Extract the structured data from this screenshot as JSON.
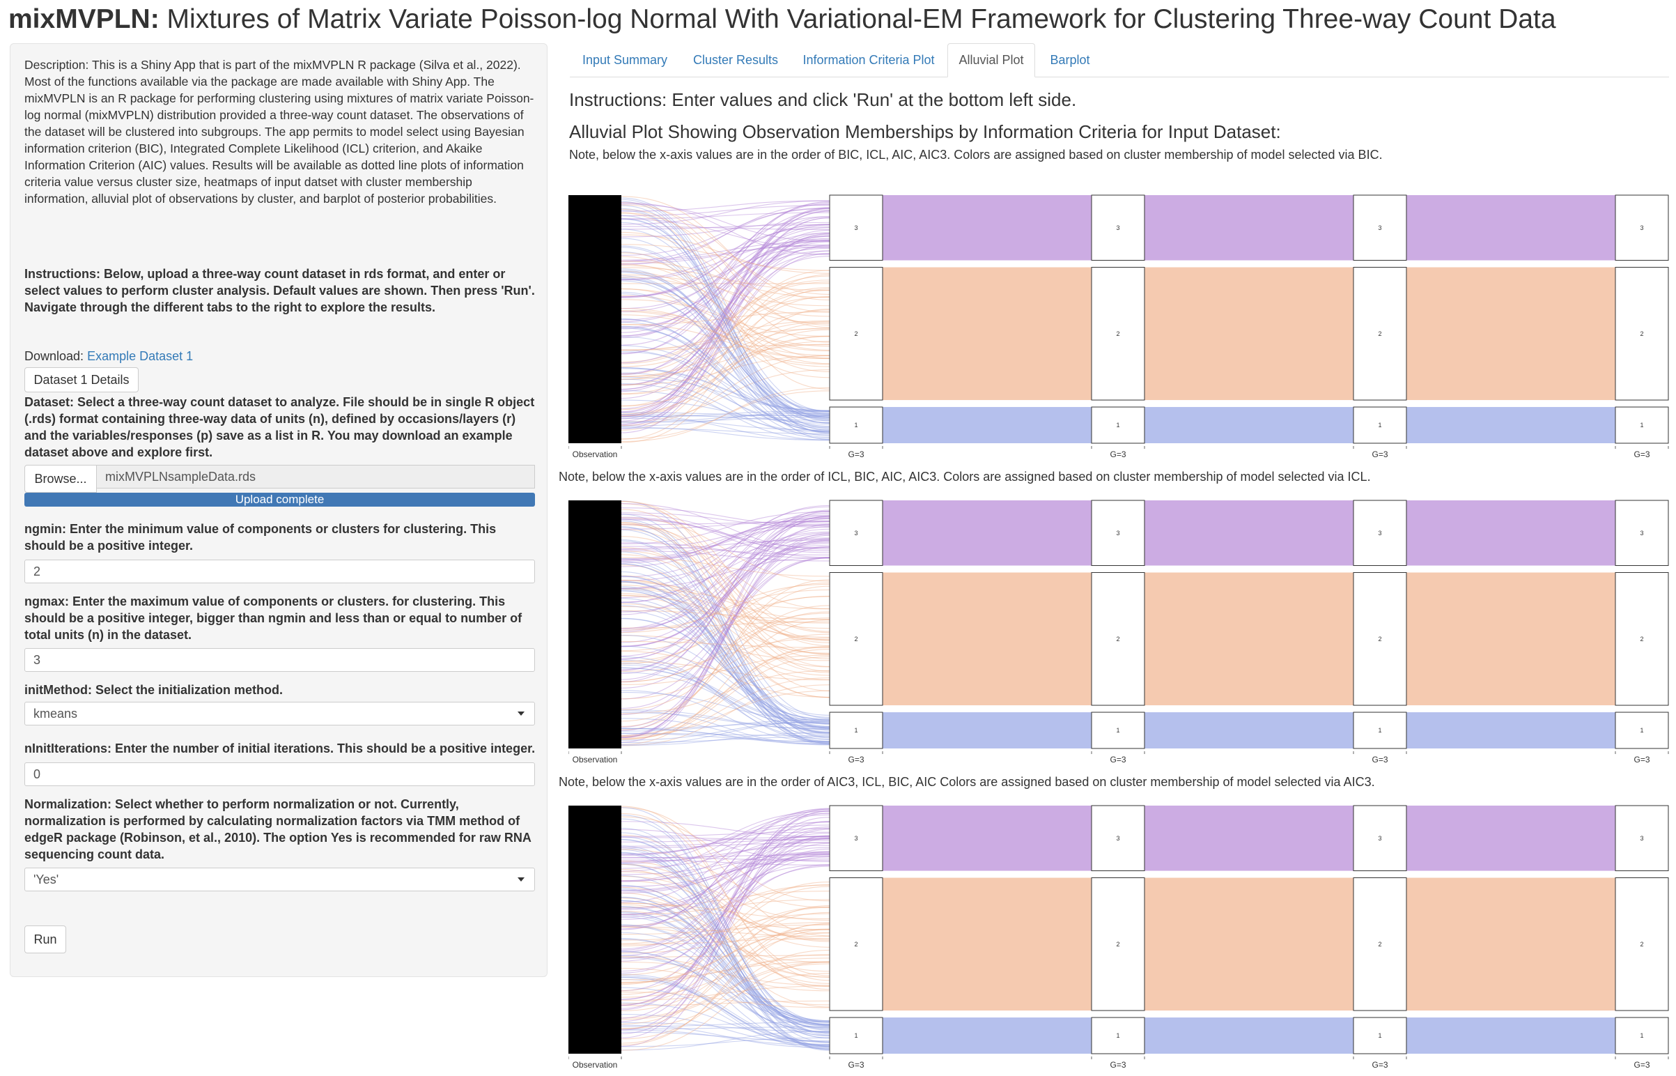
{
  "page_title": {
    "bold": "mixMVPLN:",
    "rest": " Mixtures of Matrix Variate Poisson-log Normal With Variational-EM Framework for Clustering Three-way Count Data"
  },
  "sidebar": {
    "description": "Description: This is a Shiny App that is part of the mixMVPLN R package (Silva et al., 2022). Most of the functions available via the package are made available with Shiny App. The mixMVPLN is an R package for performing clustering using mixtures of matrix variate Poisson-log normal (mixMVPLN) distribution provided a three-way count dataset. The observations of the dataset will be clustered into subgroups. The app permits to model select using Bayesian information criterion (BIC), Integrated Complete Likelihood (ICL) criterion, and Akaike Information Criterion (AIC) values. Results will be available as dotted line plots of information criteria value versus cluster size, heatmaps of input datset with cluster membership information, alluvial plot of observations by cluster, and barplot of posterior probabilities.",
    "instructions": "Instructions: Below, upload a three-way count dataset in rds format, and enter or select values to perform cluster analysis. Default values are shown. Then press 'Run'. Navigate through the different tabs to the right to explore the results.",
    "download_label": "Download: ",
    "download_link": "Example Dataset 1",
    "details_button": "Dataset 1 Details",
    "dataset_label": "Dataset: Select a three-way count dataset to analyze. File should be in single R object (.rds) format containing three-way data of units (n), defined by occasions/layers (r) and the variables/responses (p) save as a list in R. You may download an example dataset above and explore first.",
    "browse_button": "Browse...",
    "file_name": "mixMVPLNsampleData.rds",
    "upload_status": "Upload complete",
    "upload_progress": 1.0,
    "ngmin_label": "ngmin: Enter the minimum value of components or clusters for clustering. This should be a positive integer.",
    "ngmin_value": "2",
    "ngmax_label": "ngmax: Enter the maximum value of components or clusters. for clustering. This should be a positive integer, bigger than ngmin and less than or equal to number of total units (n) in the dataset.",
    "ngmax_value": "3",
    "init_label": "initMethod: Select the initialization method.",
    "init_value": "kmeans",
    "ninit_label": "nInitIterations: Enter the number of initial iterations. This should be a positive integer.",
    "ninit_value": "0",
    "norm_label": "Normalization: Select whether to perform normalization or not. Currently, normalization is performed by calculating normalization factors via TMM method of edgeR package (Robinson, et al., 2010). The option Yes is recommended for raw RNA sequencing count data.",
    "norm_value": "'Yes'",
    "run_button": "Run"
  },
  "tabs": [
    {
      "label": "Input Summary",
      "active": false
    },
    {
      "label": "Cluster Results",
      "active": false
    },
    {
      "label": "Information Criteria Plot",
      "active": false
    },
    {
      "label": "Alluvial Plot",
      "active": true
    },
    {
      "label": "Barplot",
      "active": false
    }
  ],
  "main": {
    "instructions": "Instructions: Enter values and click 'Run' at the bottom left side.",
    "plot_heading": "Alluvial Plot Showing Observation Memberships by Information Criteria for Input Dataset:",
    "notes": [
      "Note, below the x-axis values are in the order of BIC, ICL, AIC, AIC3. Colors are assigned based on cluster membership of model selected via BIC.",
      "Note, below the x-axis values are in the order of ICL, BIC, AIC, AIC3. Colors are assigned based on cluster membership of model selected via ICL.",
      "Note, below the x-axis values are in the order of AIC3, ICL, BIC, AIC Colors are assigned based on cluster membership of model selected via AIC3."
    ]
  },
  "chart_data": [
    {
      "type": "alluvial",
      "axes": [
        "Observation",
        "G=3",
        "G=3",
        "G=3",
        "G=3"
      ],
      "strata": [
        "3",
        "2",
        "1"
      ],
      "stratum_shares": [
        0.27,
        0.55,
        0.15
      ],
      "colors": {
        "cluster_3": "#b07fd4",
        "cluster_2": "#efae85",
        "cluster_1": "#8e9ee3"
      }
    },
    {
      "type": "alluvial",
      "axes": [
        "Observation",
        "G=3",
        "G=3",
        "G=3",
        "G=3"
      ],
      "strata": [
        "3",
        "2",
        "1"
      ],
      "stratum_shares": [
        0.27,
        0.55,
        0.15
      ],
      "colors": {
        "cluster_3": "#b07fd4",
        "cluster_2": "#efae85",
        "cluster_1": "#8e9ee3"
      }
    },
    {
      "type": "alluvial",
      "axes": [
        "Observation",
        "G=3",
        "G=3",
        "G=3",
        "G=3"
      ],
      "strata": [
        "3",
        "2",
        "1"
      ],
      "stratum_shares": [
        0.27,
        0.55,
        0.15
      ],
      "colors": {
        "cluster_3": "#b07fd4",
        "cluster_2": "#efae85",
        "cluster_1": "#8e9ee3"
      }
    }
  ]
}
